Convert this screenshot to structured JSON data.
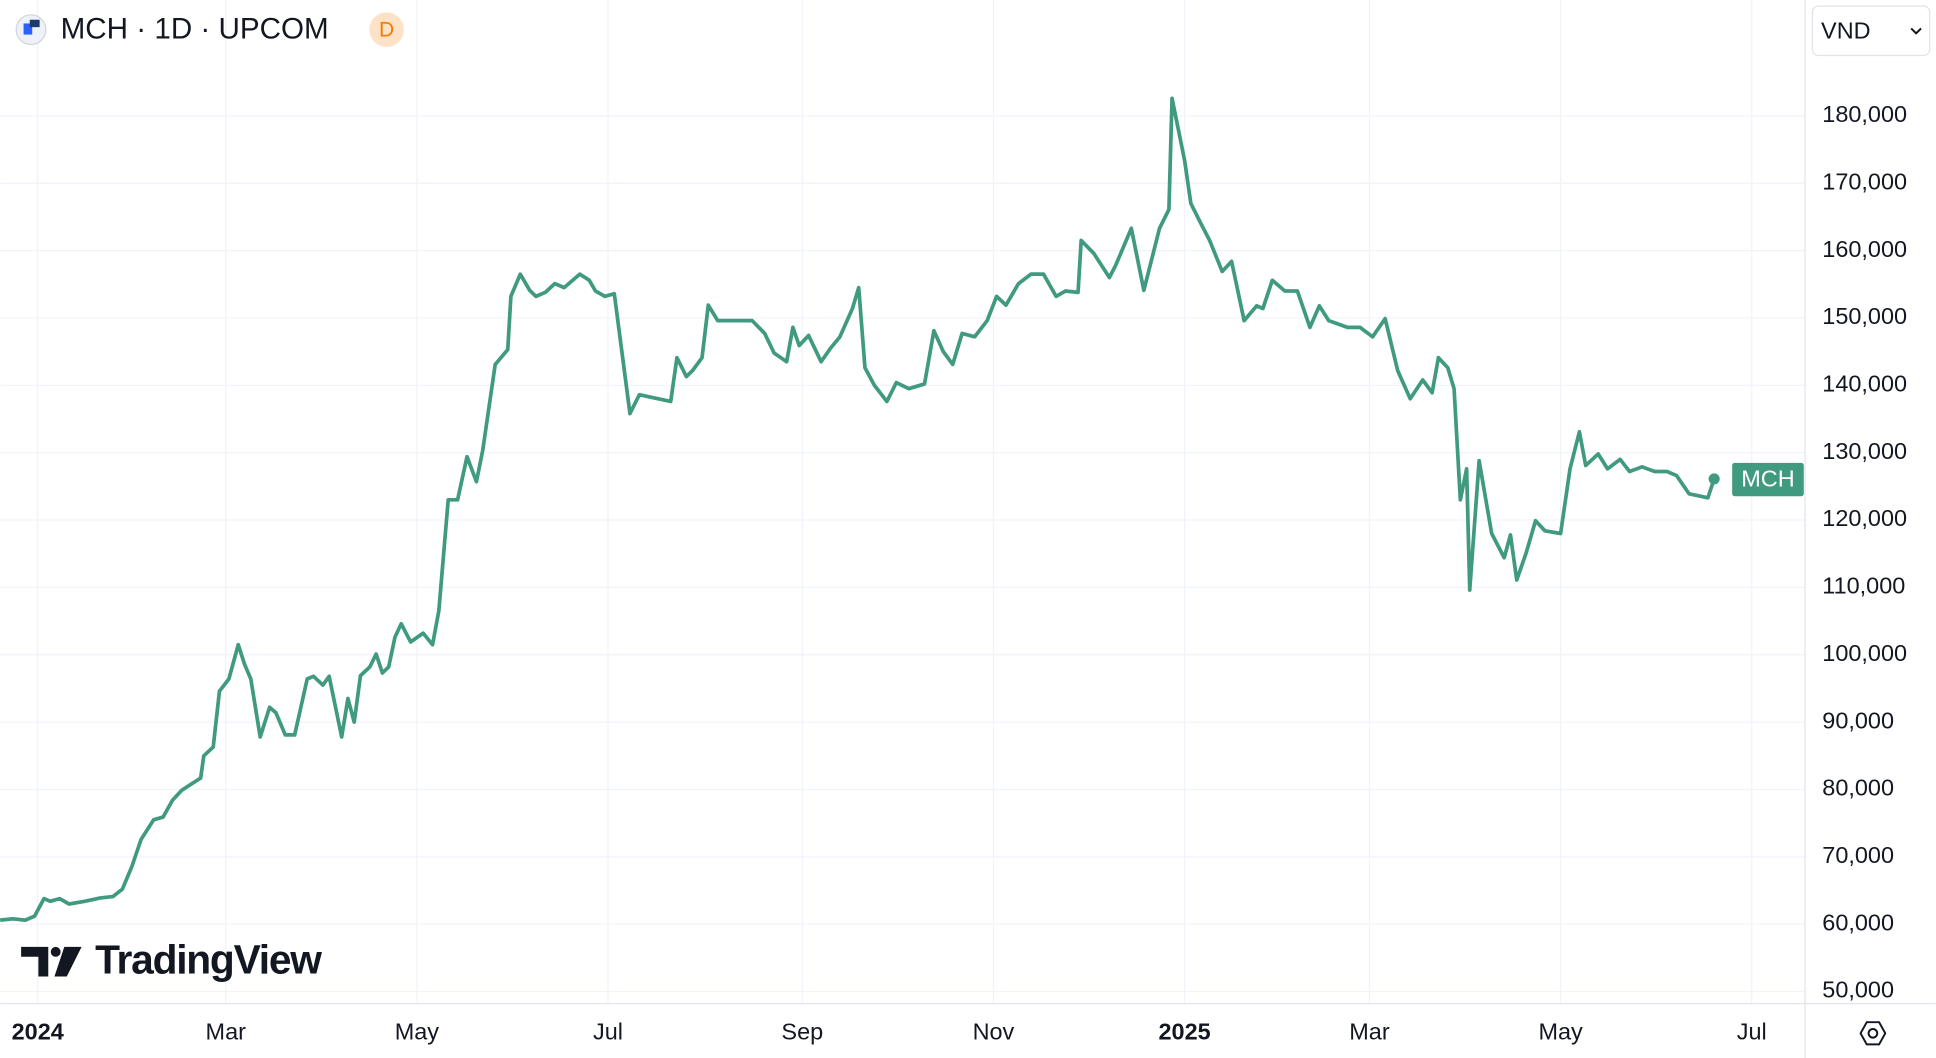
{
  "chart_data": {
    "type": "line",
    "title": "MCH · 1D · UPCOM",
    "badge": "D",
    "currency": "VND",
    "logo": "TradingView",
    "last_label": "MCH",
    "x": [
      -12,
      -8,
      -4,
      -1,
      2,
      4,
      7,
      10,
      15,
      20,
      24,
      27,
      30,
      33,
      37,
      40,
      43,
      46,
      49,
      52,
      53,
      56,
      58,
      61,
      64,
      66,
      68,
      71,
      74,
      76,
      79,
      82,
      86,
      88,
      91,
      93,
      97,
      99,
      101,
      103,
      106,
      108,
      110,
      112,
      114,
      116,
      119,
      123,
      126,
      128,
      131,
      134,
      137,
      140,
      142,
      144,
      146,
      150,
      151,
      154,
      157,
      159,
      162,
      165,
      168,
      173,
      176,
      178,
      181,
      184,
      189,
      192,
      196,
      202,
      204,
      207,
      209,
      212,
      214,
      217,
      221,
      224,
      228,
      232,
      235,
      239,
      241,
      243,
      246,
      250,
      253,
      256,
      260,
      262,
      264,
      267,
      271,
      274,
      278,
      283,
      286,
      289,
      292,
      295,
      299,
      303,
      306,
      309,
      313,
      317,
      321,
      325,
      328,
      332,
      333,
      337,
      342,
      344,
      349,
      353,
      358,
      361,
      362,
      366,
      368,
      371,
      374,
      378,
      381,
      385,
      389,
      391,
      394,
      398,
      402,
      406,
      409,
      412,
      418,
      422,
      426,
      430,
      434,
      438,
      442,
      445,
      447,
      450,
      452,
      454,
      456,
      457,
      460,
      464,
      468,
      470,
      472,
      475,
      478,
      481,
      486,
      489,
      492,
      494,
      498,
      501,
      505,
      508,
      512,
      516,
      520,
      523,
      527,
      533,
      535
    ],
    "series": [
      {
        "name": "MCH",
        "color": "#409a7f",
        "values": [
          60600,
          60800,
          60600,
          61200,
          63800,
          63400,
          63800,
          63000,
          63400,
          63900,
          64100,
          65200,
          68500,
          72600,
          75500,
          75900,
          78400,
          79900,
          80800,
          81700,
          85000,
          86300,
          94600,
          96400,
          101500,
          98600,
          96400,
          87800,
          92200,
          91400,
          88100,
          88100,
          96400,
          96800,
          95500,
          96800,
          87800,
          93500,
          90000,
          96900,
          98200,
          100100,
          97300,
          98200,
          102600,
          104600,
          101900,
          103200,
          101500,
          106500,
          123000,
          123000,
          129400,
          125700,
          130300,
          136700,
          143100,
          145300,
          153200,
          156500,
          154100,
          153200,
          153800,
          155100,
          154500,
          156500,
          155600,
          154000,
          153200,
          153600,
          135800,
          138600,
          138200,
          137600,
          144100,
          141300,
          142200,
          144100,
          151900,
          149600,
          149600,
          149600,
          149600,
          147700,
          144800,
          143500,
          148600,
          145900,
          147400,
          143500,
          145500,
          147200,
          151400,
          154500,
          142600,
          140000,
          137600,
          140400,
          139500,
          140200,
          148100,
          145000,
          143100,
          147700,
          147200,
          149600,
          153200,
          151900,
          155100,
          156500,
          156500,
          153200,
          154000,
          153800,
          161500,
          159600,
          156000,
          157800,
          163300,
          154100,
          163300,
          166100,
          182600,
          173400,
          167000,
          164200,
          161500,
          156900,
          158400,
          149600,
          151800,
          151400,
          155600,
          154000,
          154000,
          148600,
          151800,
          149600,
          148600,
          148600,
          147200,
          149900,
          142200,
          138000,
          140800,
          138900,
          144100,
          142600,
          139500,
          123000,
          127600,
          109600,
          128800,
          118000,
          114400,
          117800,
          111100,
          115100,
          119900,
          118400,
          118000,
          127600,
          133100,
          128100,
          129800,
          127600,
          129000,
          127200,
          127900,
          127200,
          127200,
          126600,
          123900,
          123300,
          126100
        ]
      }
    ],
    "xlim": [
      -12,
      564
    ],
    "xticks": [
      {
        "value": 0,
        "label": "2024"
      },
      {
        "value": 60,
        "label": "Mar"
      },
      {
        "value": 121,
        "label": "May"
      },
      {
        "value": 182,
        "label": "Jul"
      },
      {
        "value": 244,
        "label": "Sep"
      },
      {
        "value": 305,
        "label": "Nov"
      },
      {
        "value": 366,
        "label": "2025"
      },
      {
        "value": 425,
        "label": "Mar"
      },
      {
        "value": 486,
        "label": "May"
      },
      {
        "value": 547,
        "label": "Jul"
      }
    ],
    "ylim": [
      48200,
      197200
    ],
    "yticks": [
      {
        "value": 50000,
        "label": "50,000"
      },
      {
        "value": 60000,
        "label": "60,000"
      },
      {
        "value": 70000,
        "label": "70,000"
      },
      {
        "value": 80000,
        "label": "80,000"
      },
      {
        "value": 90000,
        "label": "90,000"
      },
      {
        "value": 100000,
        "label": "100,000"
      },
      {
        "value": 110000,
        "label": "110,000"
      },
      {
        "value": 120000,
        "label": "120,000"
      },
      {
        "value": 130000,
        "label": "130,000"
      },
      {
        "value": 140000,
        "label": "140,000"
      },
      {
        "value": 150000,
        "label": "150,000"
      },
      {
        "value": 160000,
        "label": "160,000"
      },
      {
        "value": 170000,
        "label": "170,000"
      },
      {
        "value": 180000,
        "label": "180,000"
      }
    ],
    "grid": true
  }
}
